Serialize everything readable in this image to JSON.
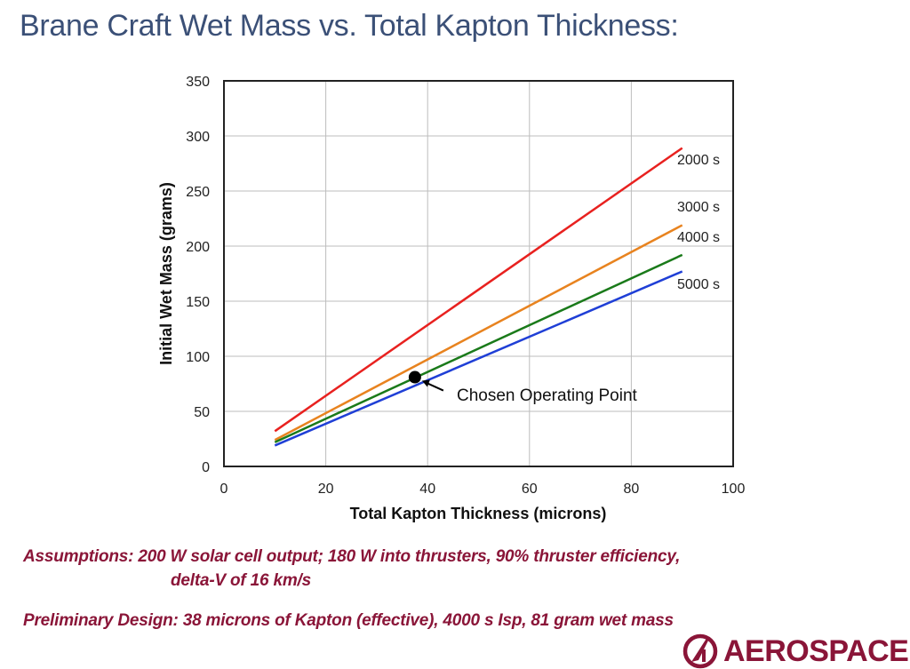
{
  "header": {
    "title": "Brane Craft Wet Mass vs. Total Kapton Thickness:"
  },
  "chart_data": {
    "type": "line",
    "title": "Brane Craft Wet Mass vs. Total Kapton Thickness:",
    "xlabel": "Total Kapton Thickness (microns)",
    "ylabel": "Initial Wet Mass (grams)",
    "xlim": [
      0,
      100
    ],
    "ylim": [
      0,
      350
    ],
    "xticks": [
      0,
      20,
      40,
      60,
      80,
      100
    ],
    "yticks": [
      0,
      50,
      100,
      150,
      200,
      250,
      300,
      350
    ],
    "grid": true,
    "legend_position": "inline-right",
    "x": [
      10,
      90
    ],
    "series": [
      {
        "name": "2000 s",
        "color": "#e8211f",
        "values": [
          32,
          289
        ]
      },
      {
        "name": "3000 s",
        "color": "#e8831f",
        "values": [
          24,
          219
        ]
      },
      {
        "name": "4000 s",
        "color": "#1a7a1a",
        "values": [
          22,
          192
        ]
      },
      {
        "name": "5000 s",
        "color": "#1f3fd6",
        "values": [
          19,
          177
        ]
      }
    ],
    "annotations": [
      {
        "text": "Chosen Operating Point",
        "x": 37.5,
        "y": 81,
        "marker": "filled-circle",
        "color": "#000000"
      }
    ]
  },
  "notes": {
    "assumptions_line1": "Assumptions: 200 W solar cell output; 180 W into thrusters, 90% thruster efficiency,",
    "assumptions_line2": "delta-V of 16 km/s",
    "design": "Preliminary Design:  38 microns of Kapton (effective), 4000 s Isp, 81 gram wet mass"
  },
  "logo": {
    "text": "AEROSPACE",
    "color": "#8a1538",
    "icon": "aerospace-a-logo-icon"
  }
}
